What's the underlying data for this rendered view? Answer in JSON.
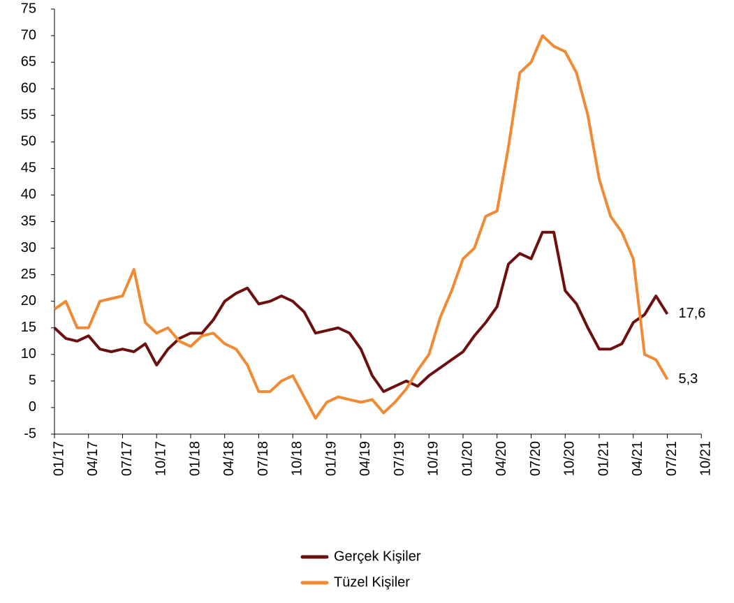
{
  "chart_data": {
    "type": "line",
    "categories": [
      "01/17",
      null,
      null,
      "04/17",
      null,
      null,
      "07/17",
      null,
      null,
      "10/17",
      null,
      null,
      "01/18",
      null,
      null,
      "04/18",
      null,
      null,
      "07/18",
      null,
      null,
      "10/18",
      null,
      null,
      "01/19",
      null,
      null,
      "04/19",
      null,
      null,
      "07/19",
      null,
      null,
      "10/19",
      null,
      null,
      "01/20",
      null,
      null,
      "04/20",
      null,
      null,
      "07/20",
      null,
      null,
      "10/20",
      null,
      null,
      "01/21",
      null,
      null,
      "04/21",
      null,
      null,
      "07/21",
      null,
      null,
      "10/21"
    ],
    "series": [
      {
        "name": "Gerçek Kişiler",
        "color": "#6b0f0f",
        "values": [
          15,
          13,
          12.5,
          13.5,
          11,
          10.5,
          11,
          10.5,
          12,
          8,
          11,
          13,
          14,
          14,
          16.5,
          20,
          21.5,
          22.5,
          19.5,
          20,
          21,
          20,
          18,
          14,
          14.5,
          15,
          14,
          11,
          6,
          3,
          4,
          5,
          4,
          6,
          7.5,
          9,
          10.5,
          13.5,
          16,
          19,
          27,
          29,
          28,
          33,
          33,
          22,
          19.5,
          15,
          11,
          11,
          12,
          16,
          17.5,
          21,
          17.6,
          null,
          null,
          null
        ],
        "value_labels": [
          null,
          null,
          null,
          null,
          null,
          null,
          null,
          null,
          null,
          null,
          null,
          null,
          null,
          null,
          null,
          null,
          null,
          null,
          null,
          null,
          null,
          null,
          null,
          null,
          null,
          null,
          null,
          null,
          null,
          null,
          null,
          null,
          null,
          null,
          null,
          null,
          null,
          null,
          null,
          null,
          null,
          null,
          null,
          null,
          null,
          null,
          null,
          null,
          null,
          null,
          null,
          null,
          null,
          null,
          "17,6",
          null,
          null,
          null
        ]
      },
      {
        "name": "Tüzel Kişiler",
        "color": "#f08a34",
        "values": [
          18.5,
          20,
          15,
          15,
          20,
          20.5,
          21,
          26,
          16,
          14,
          15,
          12.5,
          11.5,
          13.5,
          14,
          12,
          11,
          8,
          3,
          3,
          5,
          6,
          2,
          -2,
          1,
          2,
          1.5,
          1,
          1.5,
          -1,
          1,
          3.5,
          7,
          10,
          17,
          22,
          28,
          30,
          36,
          37,
          49,
          63,
          65,
          70,
          68,
          67,
          63,
          55,
          43,
          36,
          33,
          28,
          10,
          9,
          5.3,
          null,
          null,
          null
        ],
        "value_labels": [
          null,
          null,
          null,
          null,
          null,
          null,
          null,
          null,
          null,
          null,
          null,
          null,
          null,
          null,
          null,
          null,
          null,
          null,
          null,
          null,
          null,
          null,
          null,
          null,
          null,
          null,
          null,
          null,
          null,
          null,
          null,
          null,
          null,
          null,
          null,
          null,
          null,
          null,
          null,
          null,
          null,
          null,
          null,
          null,
          null,
          null,
          null,
          null,
          null,
          null,
          null,
          null,
          null,
          null,
          "5,3",
          null,
          null,
          null
        ]
      }
    ],
    "ylim": [
      -5,
      75
    ],
    "yticks": [
      -5,
      0,
      5,
      10,
      15,
      20,
      25,
      30,
      35,
      40,
      45,
      50,
      55,
      60,
      65,
      70,
      75
    ],
    "grid": false
  }
}
